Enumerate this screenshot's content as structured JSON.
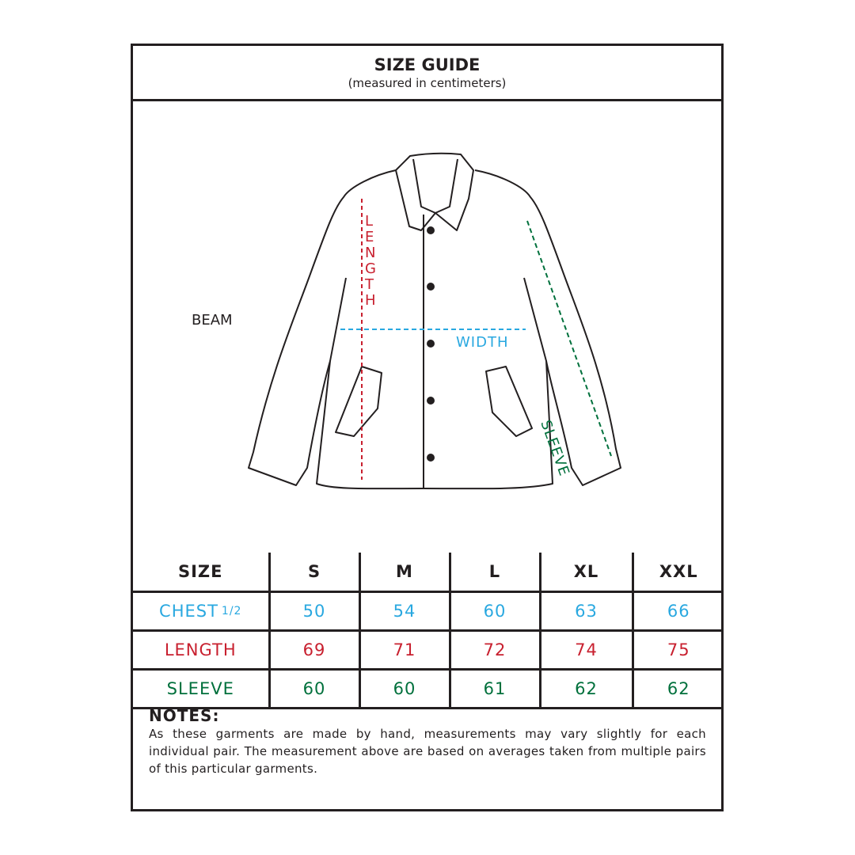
{
  "header": {
    "title": "SIZE GUIDE",
    "subtitle": "(measured in centimeters)"
  },
  "illustration": {
    "brand": "BEAM",
    "labels": {
      "length": "LENGTH",
      "width": "WIDTH",
      "sleeve": "SLEEVE"
    }
  },
  "colors": {
    "chest": "#29a8e0",
    "length": "#c8202f",
    "sleeve": "#00703c",
    "ink": "#231f20"
  },
  "table": {
    "headers": [
      "SIZE",
      "S",
      "M",
      "L",
      "XL",
      "XXL"
    ],
    "rows": [
      {
        "label": "CHEST",
        "suffix": "1/2",
        "color": "#29a8e0",
        "values": [
          "50",
          "54",
          "60",
          "63",
          "66"
        ]
      },
      {
        "label": "LENGTH",
        "suffix": "",
        "color": "#c8202f",
        "values": [
          "69",
          "71",
          "72",
          "74",
          "75"
        ]
      },
      {
        "label": "SLEEVE",
        "suffix": "",
        "color": "#00703c",
        "values": [
          "60",
          "60",
          "61",
          "62",
          "62"
        ]
      }
    ]
  },
  "notes": {
    "title": "NOTES:",
    "body": "As these garments are made by hand, measurements may vary slightly for each individual pair. The measurement above are based on averages taken from multiple pairs of this particular garments."
  }
}
